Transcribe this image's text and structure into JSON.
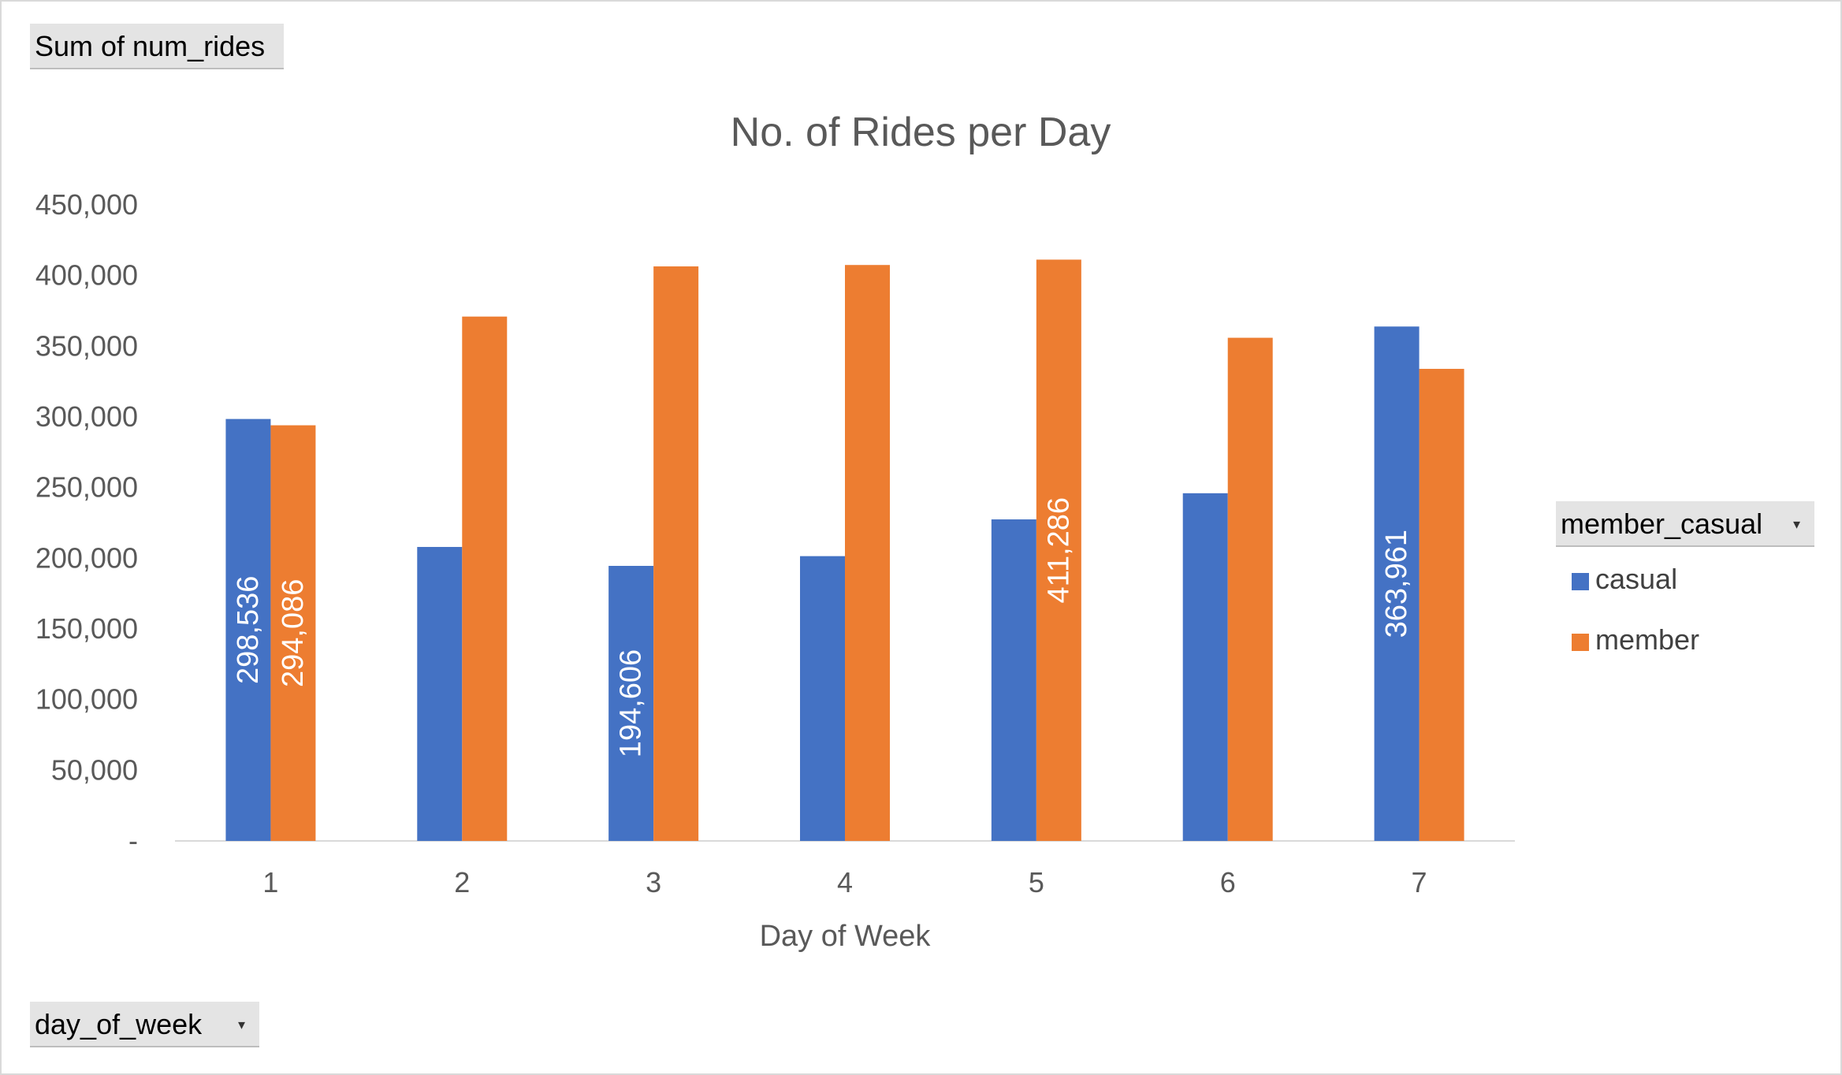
{
  "pivot": {
    "values_field": "Sum of num_rides",
    "axis_field": "day_of_week",
    "legend_field": "member_casual"
  },
  "colors": {
    "casual": "#4472c4",
    "member": "#ed7d31",
    "axis_text": "#595959",
    "gridline": "#d9d9d9"
  },
  "chart_data": {
    "type": "bar",
    "title": "No. of Rides per Day",
    "xlabel": "Day of Week",
    "ylabel": "",
    "categories": [
      "1",
      "2",
      "3",
      "4",
      "5",
      "6",
      "7"
    ],
    "ylim": [
      0,
      450000
    ],
    "yticks": [
      "-",
      "50,000",
      "100,000",
      "150,000",
      "200,000",
      "250,000",
      "300,000",
      "350,000",
      "400,000",
      "450,000"
    ],
    "grid": false,
    "legend_position": "right",
    "series": [
      {
        "name": "casual",
        "color": "#4472c4",
        "values": [
          298536,
          208000,
          194606,
          201500,
          227500,
          246000,
          363961
        ],
        "data_labels": [
          "298,536",
          "",
          "194,606",
          "",
          "",
          "",
          "363,961"
        ]
      },
      {
        "name": "member",
        "color": "#ed7d31",
        "values": [
          294086,
          371000,
          406500,
          407500,
          411286,
          356000,
          334000
        ],
        "data_labels": [
          "294,086",
          "",
          "",
          "",
          "411,286",
          "",
          ""
        ]
      }
    ]
  }
}
